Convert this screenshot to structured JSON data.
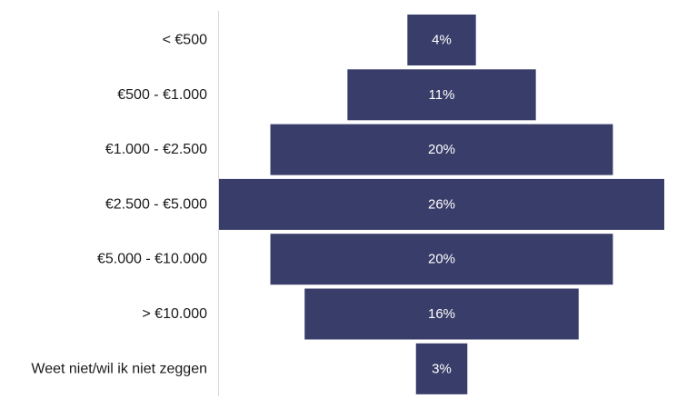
{
  "chart_data": {
    "type": "bar",
    "orientation": "horizontal-centered",
    "categories": [
      "< €500",
      "€500 - €1.000",
      "€1.000 - €2.500",
      "€2.500 - €5.000",
      "€5.000 - €10.000",
      "> €10.000",
      "Weet niet/wil ik niet zeggen"
    ],
    "values": [
      4,
      11,
      20,
      26,
      20,
      16,
      3
    ],
    "value_labels": [
      "4%",
      "11%",
      "20%",
      "26%",
      "20%",
      "16%",
      "3%"
    ],
    "unit": "%",
    "title": "",
    "xlabel": "",
    "ylabel": "",
    "legend": "none",
    "grid": false,
    "colors": {
      "bar": "#383d69",
      "axis": "#d9d9d9",
      "category_text": "#1a1a1a",
      "value_text": "#ffffff"
    }
  }
}
